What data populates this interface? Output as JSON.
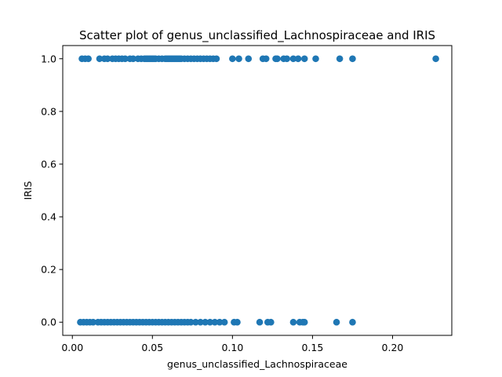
{
  "chart_data": {
    "type": "scatter",
    "title": "Scatter plot of genus_unclassified_Lachnospiraceae and IRIS",
    "xlabel": "genus_unclassified_Lachnospiraceae",
    "ylabel": "IRIS",
    "xlim": [
      -0.006,
      0.237
    ],
    "ylim": [
      -0.05,
      1.05
    ],
    "xticks": [
      0.0,
      0.05,
      0.1,
      0.15,
      0.2
    ],
    "xtick_labels": [
      "0.00",
      "0.05",
      "0.10",
      "0.15",
      "0.20"
    ],
    "yticks": [
      0.0,
      0.2,
      0.4,
      0.6,
      0.8,
      1.0
    ],
    "ytick_labels": [
      "0.0",
      "0.2",
      "0.4",
      "0.6",
      "0.8",
      "1.0"
    ],
    "grid": false,
    "point_color": "#1f77b4",
    "series": [
      {
        "x": [
          0.006,
          0.008,
          0.01,
          0.017,
          0.02,
          0.022,
          0.025,
          0.027,
          0.029,
          0.031,
          0.033,
          0.036,
          0.038,
          0.041,
          0.043,
          0.045,
          0.046,
          0.047,
          0.048,
          0.049,
          0.05,
          0.051,
          0.052,
          0.054,
          0.056,
          0.058,
          0.059,
          0.06,
          0.061,
          0.062,
          0.063,
          0.064,
          0.065,
          0.066,
          0.067,
          0.068,
          0.07,
          0.072,
          0.074,
          0.076,
          0.078,
          0.08,
          0.082,
          0.084,
          0.086,
          0.088,
          0.09,
          0.1,
          0.104,
          0.11,
          0.119,
          0.121,
          0.127,
          0.128,
          0.132,
          0.134,
          0.138,
          0.141,
          0.145,
          0.152,
          0.167,
          0.175,
          0.227
        ],
        "y": [
          1,
          1,
          1,
          1,
          1,
          1,
          1,
          1,
          1,
          1,
          1,
          1,
          1,
          1,
          1,
          1,
          1,
          1,
          1,
          1,
          1,
          1,
          1,
          1,
          1,
          1,
          1,
          1,
          1,
          1,
          1,
          1,
          1,
          1,
          1,
          1,
          1,
          1,
          1,
          1,
          1,
          1,
          1,
          1,
          1,
          1,
          1,
          1,
          1,
          1,
          1,
          1,
          1,
          1,
          1,
          1,
          1,
          1,
          1,
          1,
          1,
          1,
          1
        ]
      },
      {
        "x": [
          0.005,
          0.007,
          0.009,
          0.011,
          0.013,
          0.016,
          0.018,
          0.02,
          0.022,
          0.024,
          0.026,
          0.028,
          0.03,
          0.032,
          0.034,
          0.036,
          0.038,
          0.04,
          0.042,
          0.044,
          0.046,
          0.048,
          0.05,
          0.052,
          0.054,
          0.056,
          0.058,
          0.06,
          0.062,
          0.064,
          0.066,
          0.068,
          0.07,
          0.072,
          0.074,
          0.077,
          0.08,
          0.083,
          0.086,
          0.089,
          0.092,
          0.095,
          0.101,
          0.103,
          0.117,
          0.122,
          0.124,
          0.138,
          0.142,
          0.144,
          0.145,
          0.165,
          0.175
        ],
        "y": [
          0,
          0,
          0,
          0,
          0,
          0,
          0,
          0,
          0,
          0,
          0,
          0,
          0,
          0,
          0,
          0,
          0,
          0,
          0,
          0,
          0,
          0,
          0,
          0,
          0,
          0,
          0,
          0,
          0,
          0,
          0,
          0,
          0,
          0,
          0,
          0,
          0,
          0,
          0,
          0,
          0,
          0,
          0,
          0,
          0,
          0,
          0,
          0,
          0,
          0,
          0,
          0,
          0
        ]
      }
    ]
  }
}
